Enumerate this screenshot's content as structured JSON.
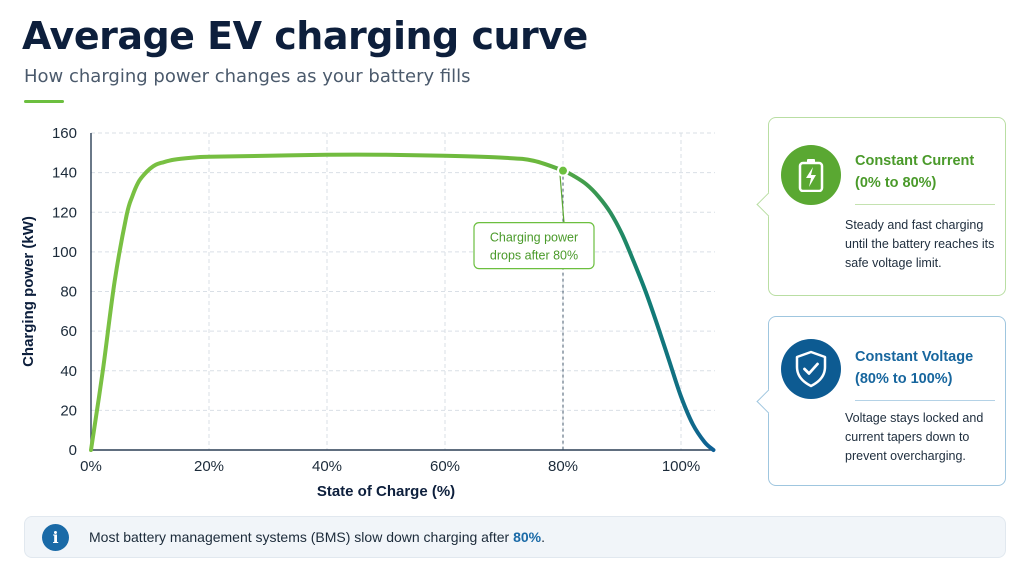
{
  "title": "Average EV charging curve",
  "subtitle": "How charging power changes as your battery fills",
  "chart_data": {
    "type": "line",
    "xlabel": "State of Charge (%)",
    "ylabel": "Charging power (kW)",
    "xlim": [
      0,
      107
    ],
    "ylim": [
      0,
      160
    ],
    "x_ticks": [
      0,
      20,
      40,
      60,
      80,
      100
    ],
    "x_tick_labels": [
      "0%",
      "20%",
      "40%",
      "60%",
      "80%",
      "100%"
    ],
    "y_ticks": [
      0,
      20,
      40,
      60,
      80,
      100,
      120,
      140,
      160
    ],
    "grid": true,
    "series": [
      {
        "name": "",
        "x": [
          0,
          2,
          4,
          6,
          7,
          8,
          9,
          10,
          11,
          12,
          14,
          17,
          20,
          30,
          40,
          50,
          60,
          70,
          75,
          80,
          82,
          84,
          86,
          88,
          90,
          92,
          94,
          96,
          98,
          100,
          102,
          104,
          105.5
        ],
        "y": [
          0,
          40,
          85,
          118,
          128,
          135,
          139,
          142,
          144,
          145,
          146.5,
          147.5,
          148,
          148.5,
          149,
          149,
          148.5,
          147.5,
          146,
          141,
          138,
          134,
          128,
          120,
          109,
          95,
          80,
          63,
          45,
          27,
          13,
          4,
          0
        ]
      }
    ],
    "highlight_point": {
      "x": 80,
      "y": 141
    },
    "annotation": "Charging power drops after 80%"
  },
  "cards": {
    "constant_current": {
      "heading_line1": "Constant Current",
      "heading_line2": "(0% to 80%)",
      "text": "Steady and fast charging until the battery reaches its safe voltage limit.",
      "icon": "battery-charging-icon",
      "color": "#5aa832"
    },
    "constant_voltage": {
      "heading_line1": "Constant Voltage",
      "heading_line2": "(80% to 100%)",
      "text": "Voltage stays locked and current tapers down to prevent overcharging.",
      "icon": "shield-check-icon",
      "color": "#0d5b92"
    }
  },
  "banner": {
    "icon": "info-icon",
    "icon_glyph": "i",
    "text_before": "Most battery management systems (BMS) slow down charging after ",
    "text_highlight": "80%",
    "text_after": "."
  }
}
